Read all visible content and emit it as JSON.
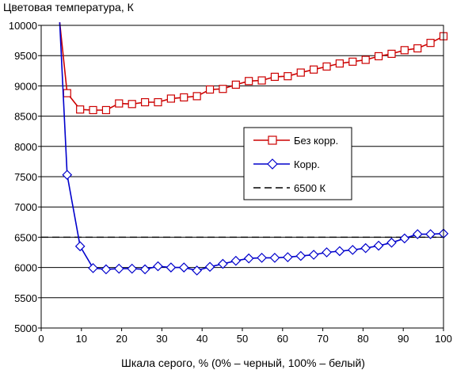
{
  "chart_data": {
    "type": "line",
    "title": "Цветовая температура, К",
    "xlabel": "Шкала серого, % (0% – черный, 100% – белый)",
    "ylabel": "",
    "xlim": [
      0,
      100
    ],
    "ylim": [
      5000,
      10000
    ],
    "x_ticks": [
      "0",
      "10",
      "20",
      "30",
      "40",
      "50",
      "60",
      "70",
      "80",
      "90",
      "100"
    ],
    "y_ticks": [
      "5000",
      "5500",
      "6000",
      "6500",
      "7000",
      "7500",
      "8000",
      "8500",
      "9000",
      "9500",
      "10000"
    ],
    "grid": "horizontal",
    "legend": "right-center",
    "x": [
      6.45,
      9.68,
      12.9,
      16.13,
      19.35,
      22.58,
      25.81,
      29.03,
      32.26,
      35.48,
      38.71,
      41.94,
      45.16,
      48.39,
      51.61,
      54.84,
      58.06,
      61.29,
      64.52,
      67.74,
      70.97,
      74.19,
      77.42,
      80.65,
      83.87,
      87.1,
      90.32,
      93.55,
      96.77,
      100
    ],
    "series": [
      {
        "name": "Без корр.",
        "color": "#cc0000",
        "marker": "square",
        "start_point": [
          4.6,
          10050
        ],
        "values": [
          8880,
          8610,
          8600,
          8600,
          8710,
          8700,
          8730,
          8730,
          8790,
          8810,
          8830,
          8940,
          8950,
          9020,
          9080,
          9090,
          9150,
          9160,
          9220,
          9270,
          9320,
          9370,
          9400,
          9430,
          9490,
          9530,
          9590,
          9620,
          9710,
          9820
        ]
      },
      {
        "name": "Корр.",
        "color": "#0000cc",
        "marker": "diamond",
        "start_point": [
          4.6,
          10050
        ],
        "values": [
          7530,
          6350,
          5990,
          5970,
          5980,
          5980,
          5970,
          6020,
          6000,
          6000,
          5950,
          6010,
          6060,
          6110,
          6150,
          6160,
          6160,
          6170,
          6190,
          6210,
          6250,
          6270,
          6290,
          6320,
          6360,
          6410,
          6480,
          6550,
          6550,
          6560
        ]
      },
      {
        "name": "6500 К",
        "color": "#000000",
        "style": "dashed",
        "x": [
          0,
          100
        ],
        "values": [
          6500,
          6500
        ]
      }
    ]
  }
}
